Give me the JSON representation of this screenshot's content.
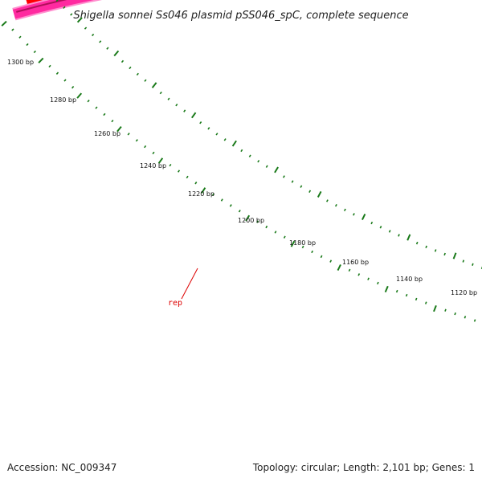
{
  "map": {
    "title": "Shigella sonnei Ss046 plasmid pSS046_spC, complete sequence",
    "accession_text": "Accession: NC_009347",
    "summary_text": "Topology: circular; Length: 2,101 bp; Genes: 1",
    "tick_labels": [
      "1300 bp",
      "1280 bp",
      "1260 bp",
      "1240 bp",
      "1220 bp",
      "1200 bp",
      "1180 bp",
      "1160 bp",
      "1140 bp",
      "1120 bp"
    ],
    "gene": {
      "label": "rep",
      "color": "#dd0000"
    },
    "colors": {
      "backbone": "#808080",
      "forward_feature": "#ff0000",
      "reverse_feature": "#ff2aa0",
      "ticks": "#1a7a1a"
    }
  }
}
